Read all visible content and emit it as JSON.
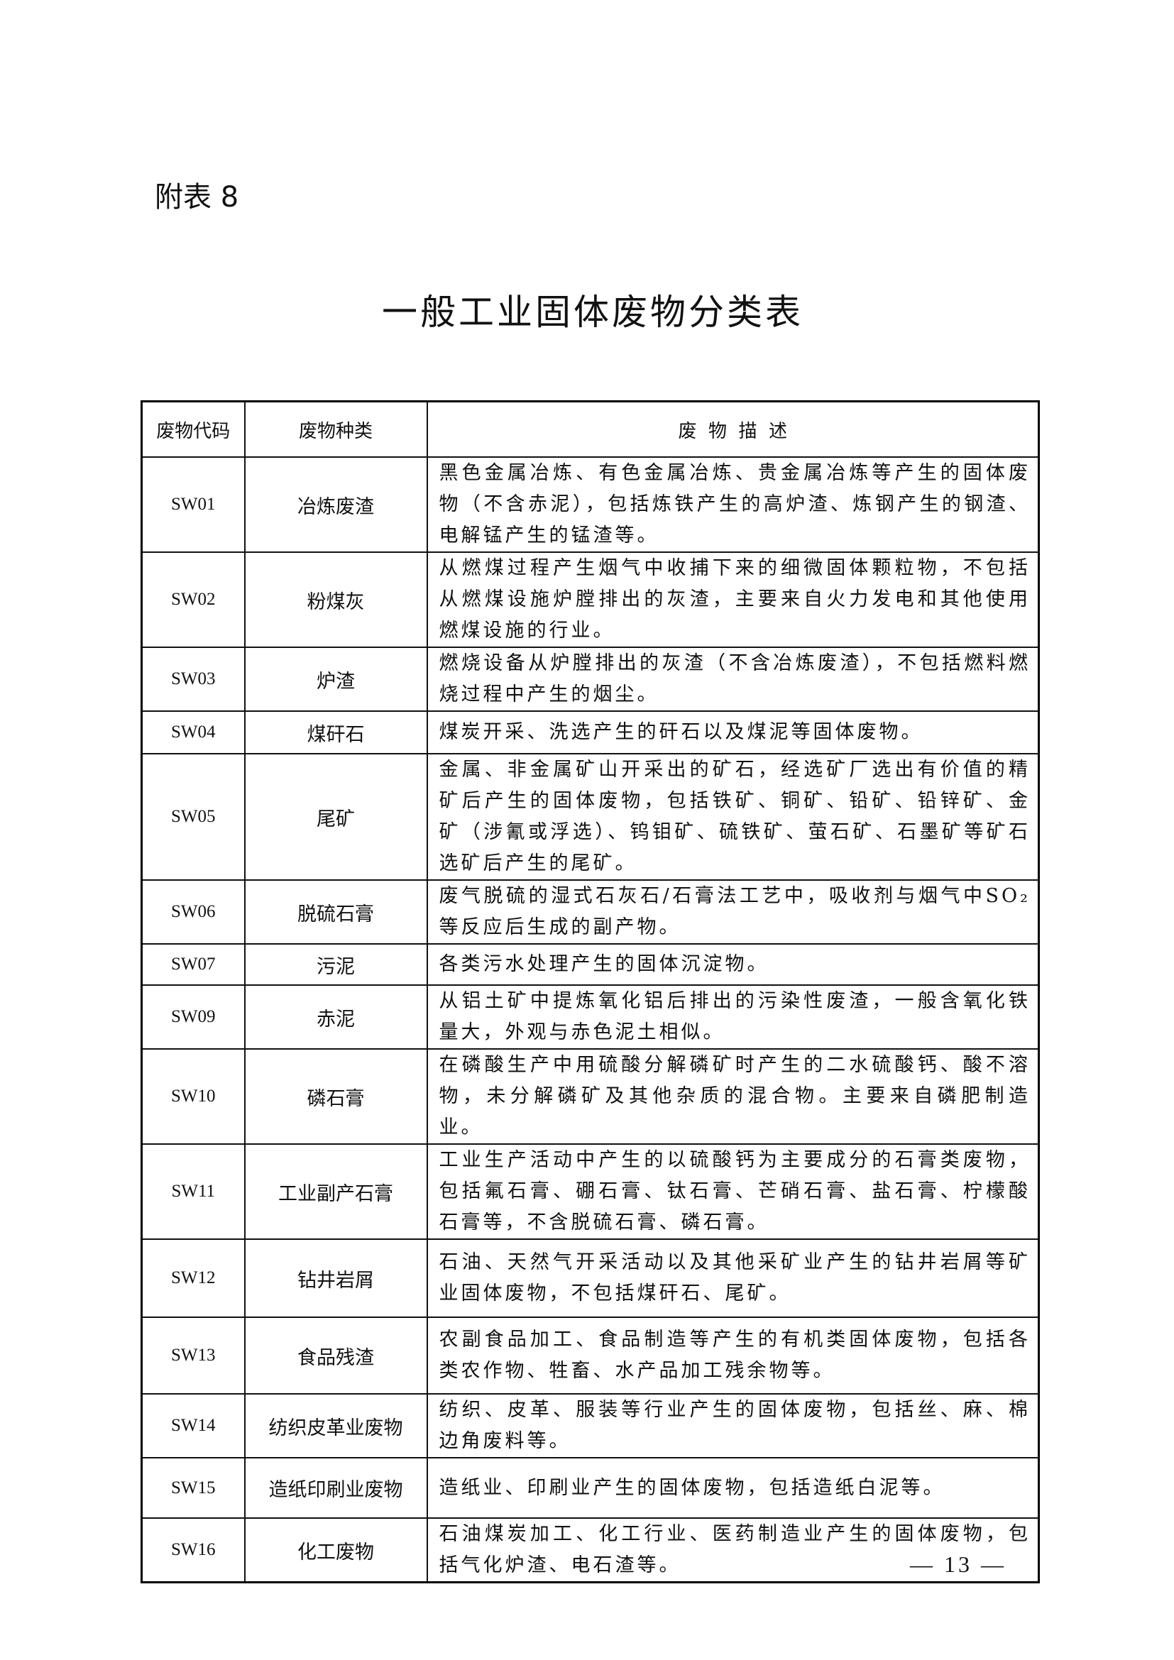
{
  "appendix_label": "附表 8",
  "title": "一般工业固体废物分类表",
  "table": {
    "headers": [
      "废物代码",
      "废物种类",
      "废  物  描  述"
    ],
    "rows": [
      {
        "code": "SW01",
        "kind": "冶炼废渣",
        "desc": "黑色金属冶炼、有色金属冶炼、贵金属冶炼等产生的固体废物（不含赤泥），包括炼铁产生的高炉渣、炼钢产生的钢渣、电解锰产生的锰渣等。"
      },
      {
        "code": "SW02",
        "kind": "粉煤灰",
        "desc": "从燃煤过程产生烟气中收捕下来的细微固体颗粒物，不包括从燃煤设施炉膛排出的灰渣，主要来自火力发电和其他使用燃煤设施的行业。"
      },
      {
        "code": "SW03",
        "kind": "炉渣",
        "desc": "燃烧设备从炉膛排出的灰渣（不含冶炼废渣），不包括燃料燃烧过程中产生的烟尘。"
      },
      {
        "code": "SW04",
        "kind": "煤矸石",
        "desc": "煤炭开采、洗选产生的矸石以及煤泥等固体废物。"
      },
      {
        "code": "SW05",
        "kind": "尾矿",
        "desc": "金属、非金属矿山开采出的矿石，经选矿厂选出有价值的精矿后产生的固体废物，包括铁矿、铜矿、铅矿、铅锌矿、金矿（涉氰或浮选）、钨钼矿、硫铁矿、萤石矿、石墨矿等矿石选矿后产生的尾矿。"
      },
      {
        "code": "SW06",
        "kind": "脱硫石膏",
        "desc": "废气脱硫的湿式石灰石/石膏法工艺中，吸收剂与烟气中SO₂等反应后生成的副产物。"
      },
      {
        "code": "SW07",
        "kind": "污泥",
        "desc": "各类污水处理产生的固体沉淀物。"
      },
      {
        "code": "SW09",
        "kind": "赤泥",
        "desc": "从铝土矿中提炼氧化铝后排出的污染性废渣，一般含氧化铁量大，外观与赤色泥土相似。"
      },
      {
        "code": "SW10",
        "kind": "磷石膏",
        "desc": "在磷酸生产中用硫酸分解磷矿时产生的二水硫酸钙、酸不溶物，未分解磷矿及其他杂质的混合物。主要来自磷肥制造业。"
      },
      {
        "code": "SW11",
        "kind": "工业副产石膏",
        "desc": "工业生产活动中产生的以硫酸钙为主要成分的石膏类废物，包括氟石膏、硼石膏、钛石膏、芒硝石膏、盐石膏、柠檬酸石膏等，不含脱硫石膏、磷石膏。"
      },
      {
        "code": "SW12",
        "kind": "钻井岩屑",
        "desc": "石油、天然气开采活动以及其他采矿业产生的钻井岩屑等矿业固体废物，不包括煤矸石、尾矿。"
      },
      {
        "code": "SW13",
        "kind": "食品残渣",
        "desc": "农副食品加工、食品制造等产生的有机类固体废物，包括各类农作物、牲畜、水产品加工残余物等。"
      },
      {
        "code": "SW14",
        "kind": "纺织皮革业废物",
        "desc": "纺织、皮革、服装等行业产生的固体废物，包括丝、麻、棉边角废料等。"
      },
      {
        "code": "SW15",
        "kind": "造纸印刷业废物",
        "desc": "造纸业、印刷业产生的固体废物，包括造纸白泥等。"
      },
      {
        "code": "SW16",
        "kind": "化工废物",
        "desc": "石油煤炭加工、化工行业、医药制造业产生的固体废物，包括气化炉渣、电石渣等。"
      }
    ]
  },
  "page_number": "— 13 —"
}
